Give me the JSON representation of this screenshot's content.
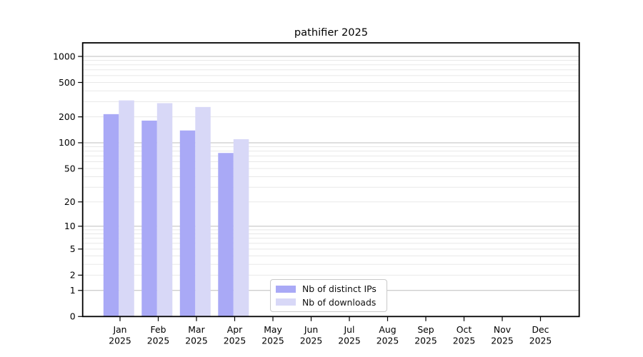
{
  "title": "pathifier 2025",
  "colors": {
    "background": "#ffffff",
    "axis": "#000000",
    "text": "#000000",
    "grid_major": "#bdbdbd",
    "grid_minor": "#e8e8e8",
    "legend_border": "#c9c9c9",
    "bar_distinct_ips": "#a9a9f6",
    "bar_downloads": "#d8d8f7"
  },
  "chart_data": {
    "type": "bar",
    "title": "pathifier 2025",
    "categories": [
      "Jan",
      "Feb",
      "Mar",
      "Apr",
      "May",
      "Jun",
      "Jul",
      "Aug",
      "Sep",
      "Oct",
      "Nov",
      "Dec"
    ],
    "x_year_label": "2025",
    "series": [
      {
        "name": "Nb of distinct IPs",
        "color": "#a9a9f6",
        "values": [
          215,
          181,
          139,
          76,
          null,
          null,
          null,
          null,
          null,
          null,
          null,
          null
        ]
      },
      {
        "name": "Nb of downloads",
        "color": "#d8d8f7",
        "values": [
          310,
          288,
          260,
          110,
          null,
          null,
          null,
          null,
          null,
          null,
          null,
          null
        ]
      }
    ],
    "y_ticks": [
      0,
      1,
      2,
      5,
      10,
      20,
      50,
      100,
      200,
      500,
      1000
    ],
    "y_scale": "log10(value+1)",
    "ylim": [
      0,
      1435
    ],
    "xlabel": "",
    "ylabel": "",
    "grid": "horizontal major and minor gridlines",
    "legend_position": "inside bottom-center"
  }
}
